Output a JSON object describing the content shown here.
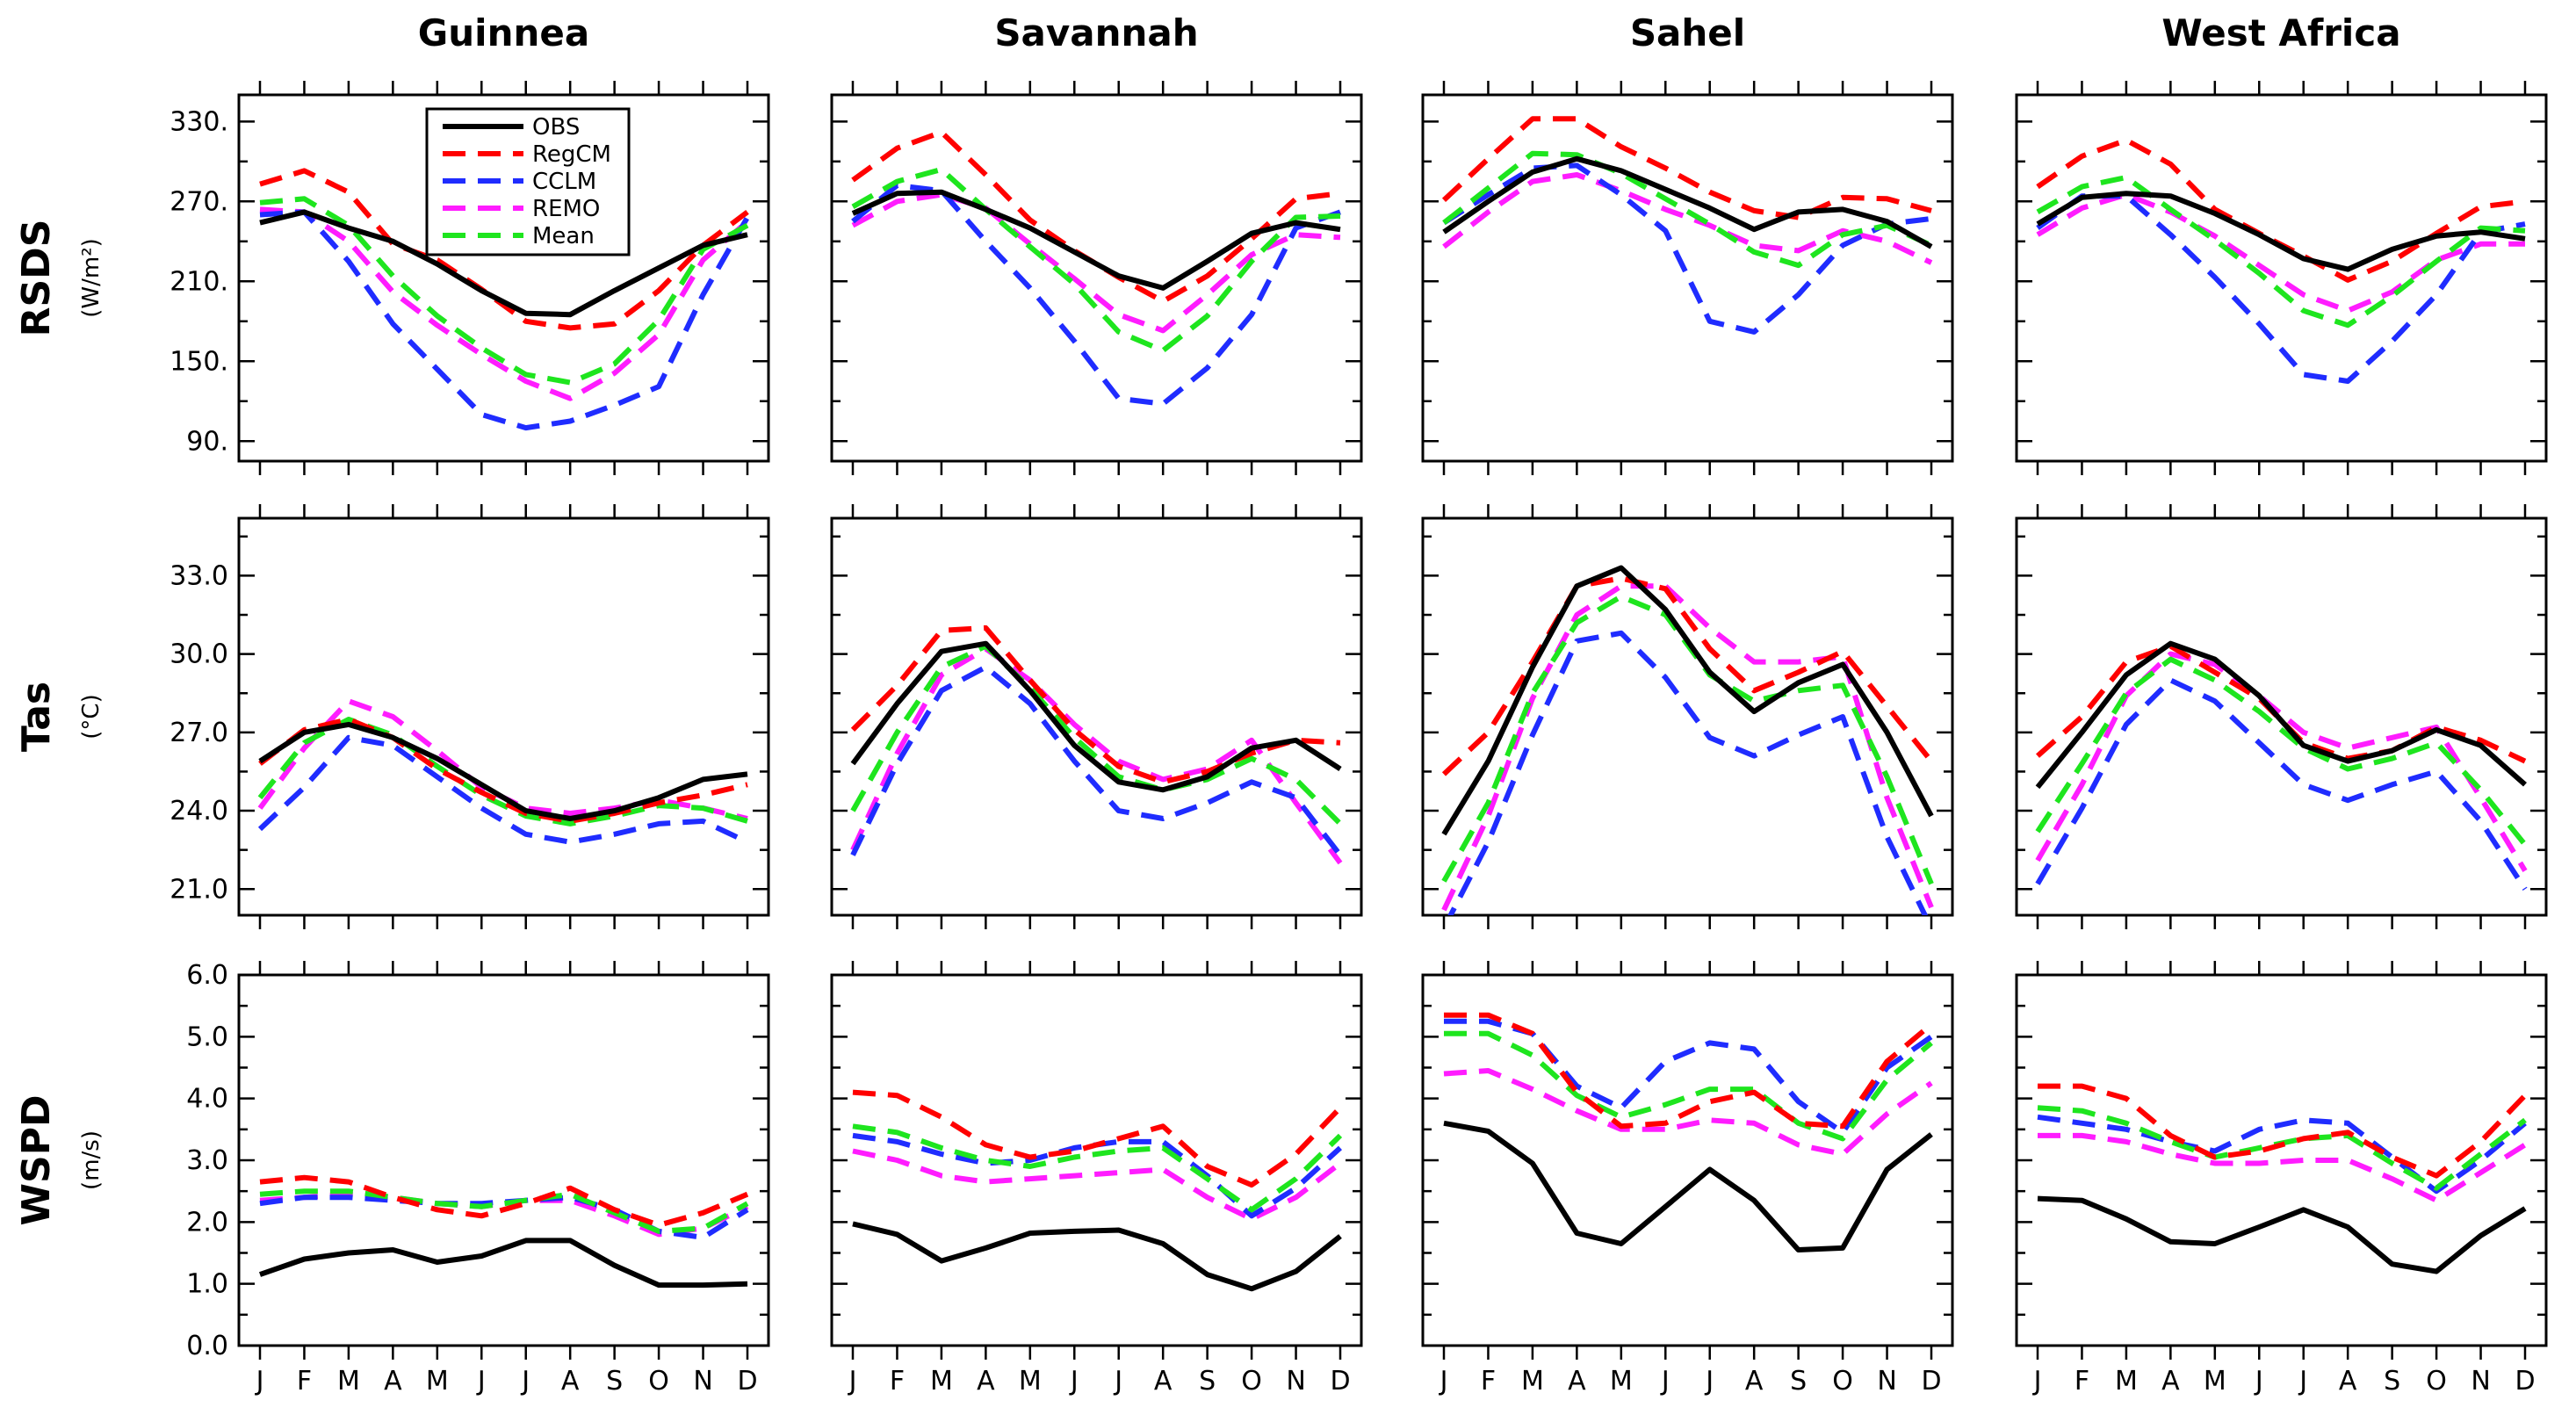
{
  "chart_data": {
    "type": "line",
    "columns": [
      "Guinnea",
      "Savannah",
      "Sahel",
      "West Africa"
    ],
    "months": [
      "J",
      "F",
      "M",
      "A",
      "M",
      "J",
      "J",
      "A",
      "S",
      "O",
      "N",
      "D"
    ],
    "legend": [
      {
        "name": "OBS",
        "color": "#000000",
        "dashed": false
      },
      {
        "name": "RegCM",
        "color": "#ff0000",
        "dashed": true
      },
      {
        "name": "CCLM",
        "color": "#1f2cff",
        "dashed": true
      },
      {
        "name": "REMO",
        "color": "#ff1cff",
        "dashed": true
      },
      {
        "name": "Mean",
        "color": "#1ee51e",
        "dashed": true
      }
    ],
    "rows": [
      {
        "label": "RSDS",
        "unit": "(W/m²)",
        "ylim": [
          75,
          350
        ],
        "ticks": [
          90,
          150,
          210,
          270,
          330
        ],
        "tick_labels": [
          "90.",
          "150.",
          "210.",
          "270.",
          "330."
        ],
        "panels": [
          {
            "OBS": [
              254,
              262,
              250,
              240,
              223,
              203,
              186,
              185,
              203,
              220,
              237,
              245
            ],
            "RegCM": [
              283,
              293,
              277,
              238,
              226,
              204,
              180,
              175,
              178,
              203,
              237,
              262
            ],
            "CCLM": [
              260,
              262,
              225,
              178,
              144,
              110,
              100,
              105,
              117,
              131,
              200,
              258
            ],
            "REMO": [
              264,
              262,
              240,
              202,
              177,
              155,
              135,
              122,
              141,
              170,
              226,
              255
            ],
            "Mean": [
              269,
              272,
              252,
              214,
              184,
              160,
              140,
              134,
              148,
              181,
              234,
              252
            ]
          },
          {
            "OBS": [
              261,
              276,
              277,
              264,
              250,
              232,
              214,
              205,
              225,
              246,
              254,
              249
            ],
            "RegCM": [
              286,
              310,
              322,
              290,
              256,
              233,
              213,
              195,
              214,
              242,
              272,
              276
            ],
            "CCLM": [
              255,
              282,
              278,
              240,
              205,
              165,
              122,
              118,
              145,
              185,
              250,
              262
            ],
            "REMO": [
              252,
              270,
              275,
              265,
              238,
              212,
              185,
              173,
              200,
              230,
              245,
              243
            ],
            "Mean": [
              266,
              285,
              294,
              264,
              236,
              208,
              172,
              158,
              184,
              225,
              258,
              259
            ]
          },
          {
            "OBS": [
              247,
              270,
              292,
              302,
              293,
              279,
              265,
              249,
              262,
              264,
              255,
              236
            ],
            "RegCM": [
              271,
              302,
              332,
              332,
              311,
              295,
              277,
              263,
              258,
              273,
              272,
              263
            ],
            "CCLM": [
              254,
              275,
              295,
              297,
              275,
              248,
              180,
              172,
              200,
              237,
              253,
              257
            ],
            "REMO": [
              236,
              262,
              285,
              290,
              278,
              264,
              252,
              237,
              233,
              248,
              240,
              224
            ],
            "Mean": [
              254,
              280,
              306,
              305,
              291,
              272,
              253,
              232,
              222,
              245,
              252,
              237
            ]
          },
          {
            "OBS": [
              253,
              273,
              276,
              274,
              261,
              245,
              227,
              219,
              234,
              244,
              247,
              242
            ],
            "RegCM": [
              281,
              304,
              316,
              298,
              264,
              246,
              229,
              211,
              225,
              246,
              266,
              270
            ],
            "CCLM": [
              250,
              274,
              274,
              245,
              213,
              178,
              140,
              135,
              165,
              200,
              247,
              253
            ],
            "REMO": [
              245,
              265,
              275,
              262,
              244,
              222,
              200,
              188,
              202,
              226,
              238,
              238
            ],
            "Mean": [
              262,
              281,
              288,
              264,
              241,
              216,
              188,
              177,
              199,
              225,
              250,
              248
            ]
          }
        ]
      },
      {
        "label": "Tas",
        "unit": "(°C)",
        "ylim": [
          20,
          35.2
        ],
        "ticks": [
          21,
          24,
          27,
          30,
          33
        ],
        "tick_labels": [
          "21.0",
          "24.0",
          "27.0",
          "30.0",
          "33.0"
        ],
        "panels": [
          {
            "OBS": [
              25.9,
              27.0,
              27.3,
              26.8,
              26.0,
              25.0,
              24.0,
              23.7,
              24.0,
              24.5,
              25.2,
              25.4
            ],
            "RegCM": [
              25.8,
              27.1,
              27.5,
              26.8,
              25.6,
              24.7,
              23.9,
              23.6,
              23.9,
              24.3,
              24.6,
              25.0
            ],
            "CCLM": [
              23.3,
              24.9,
              26.8,
              26.5,
              25.3,
              24.1,
              23.1,
              22.8,
              23.1,
              23.5,
              23.6,
              22.8
            ],
            "REMO": [
              24.1,
              26.4,
              28.2,
              27.6,
              26.3,
              24.9,
              24.1,
              23.9,
              24.1,
              24.4,
              24.1,
              23.7
            ],
            "Mean": [
              24.5,
              26.6,
              27.5,
              26.9,
              25.7,
              24.6,
              23.8,
              23.5,
              23.8,
              24.2,
              24.1,
              23.6
            ]
          },
          {
            "OBS": [
              25.8,
              28.1,
              30.1,
              30.4,
              28.6,
              26.5,
              25.1,
              24.8,
              25.3,
              26.4,
              26.7,
              25.6
            ],
            "RegCM": [
              27.1,
              28.8,
              30.9,
              31.0,
              29.0,
              27.1,
              25.7,
              25.1,
              25.5,
              26.2,
              26.7,
              26.6
            ],
            "CCLM": [
              22.3,
              25.8,
              28.6,
              29.5,
              28.1,
              25.9,
              24.0,
              23.7,
              24.3,
              25.1,
              24.5,
              22.3
            ],
            "REMO": [
              22.5,
              26.2,
              29.2,
              30.2,
              29.0,
              27.3,
              25.9,
              25.2,
              25.6,
              26.7,
              24.3,
              22.0
            ],
            "Mean": [
              24.0,
              27.0,
              29.5,
              30.3,
              28.7,
              26.8,
              25.3,
              24.8,
              25.2,
              26.0,
              25.2,
              23.5
            ]
          },
          {
            "OBS": [
              23.1,
              25.9,
              29.5,
              32.6,
              33.3,
              31.7,
              29.3,
              27.8,
              28.9,
              29.6,
              27.0,
              23.8
            ],
            "RegCM": [
              25.4,
              27.0,
              29.7,
              32.6,
              32.9,
              32.5,
              30.2,
              28.6,
              29.3,
              30.1,
              28.0,
              25.9
            ],
            "CCLM": [
              19.5,
              22.8,
              26.9,
              30.5,
              30.8,
              29.1,
              26.8,
              26.1,
              26.9,
              27.6,
              23.0,
              19.5
            ],
            "REMO": [
              20.2,
              23.8,
              28.3,
              31.5,
              32.6,
              32.6,
              31.0,
              29.7,
              29.7,
              29.9,
              24.5,
              20.3
            ],
            "Mean": [
              21.3,
              24.3,
              28.5,
              31.2,
              32.2,
              31.5,
              29.2,
              28.2,
              28.6,
              28.8,
              25.3,
              21.2
            ]
          },
          {
            "OBS": [
              24.9,
              27.0,
              29.2,
              30.4,
              29.8,
              28.4,
              26.5,
              25.9,
              26.3,
              27.1,
              26.5,
              25.0
            ],
            "RegCM": [
              26.1,
              27.6,
              29.7,
              30.3,
              29.3,
              28.3,
              26.6,
              26.0,
              26.3,
              27.2,
              26.7,
              25.9
            ],
            "CCLM": [
              21.2,
              24.1,
              27.3,
              29.0,
              28.2,
              26.6,
              25.0,
              24.4,
              25.0,
              25.5,
              23.6,
              21.0
            ],
            "REMO": [
              22.1,
              25.0,
              28.4,
              30.0,
              29.6,
              28.4,
              27.0,
              26.4,
              26.8,
              27.2,
              24.5,
              21.7
            ],
            "Mean": [
              23.2,
              25.8,
              28.5,
              29.8,
              29.0,
              27.8,
              26.4,
              25.6,
              26.0,
              26.6,
              24.8,
              22.7
            ]
          }
        ]
      },
      {
        "label": "WSPD",
        "unit": "(m/s)",
        "ylim": [
          0,
          6
        ],
        "ticks": [
          0,
          1,
          2,
          3,
          4,
          5,
          6
        ],
        "tick_labels": [
          "0.0",
          "1.0",
          "2.0",
          "3.0",
          "4.0",
          "5.0",
          "6.0"
        ],
        "panels": [
          {
            "OBS": [
              1.15,
              1.4,
              1.5,
              1.55,
              1.35,
              1.45,
              1.7,
              1.7,
              1.3,
              0.98,
              0.98,
              1.0
            ],
            "RegCM": [
              2.65,
              2.72,
              2.65,
              2.4,
              2.2,
              2.1,
              2.3,
              2.55,
              2.2,
              1.95,
              2.15,
              2.45
            ],
            "CCLM": [
              2.3,
              2.4,
              2.4,
              2.35,
              2.3,
              2.3,
              2.35,
              2.4,
              2.2,
              1.85,
              1.75,
              2.2
            ],
            "REMO": [
              2.35,
              2.4,
              2.45,
              2.4,
              2.3,
              2.25,
              2.35,
              2.35,
              2.1,
              1.8,
              1.9,
              2.25
            ],
            "Mean": [
              2.45,
              2.5,
              2.5,
              2.4,
              2.3,
              2.25,
              2.35,
              2.45,
              2.15,
              1.85,
              1.9,
              2.3
            ]
          },
          {
            "OBS": [
              1.97,
              1.8,
              1.37,
              1.58,
              1.82,
              1.85,
              1.87,
              1.65,
              1.15,
              0.92,
              1.2,
              1.77
            ],
            "RegCM": [
              4.1,
              4.05,
              3.7,
              3.25,
              3.05,
              3.15,
              3.35,
              3.55,
              2.9,
              2.6,
              3.1,
              3.85
            ],
            "CCLM": [
              3.4,
              3.3,
              3.1,
              2.95,
              3.0,
              3.2,
              3.3,
              3.3,
              2.75,
              2.1,
              2.55,
              3.2
            ],
            "REMO": [
              3.15,
              3.0,
              2.75,
              2.65,
              2.7,
              2.75,
              2.8,
              2.85,
              2.4,
              2.05,
              2.4,
              2.95
            ],
            "Mean": [
              3.55,
              3.45,
              3.2,
              3.0,
              2.9,
              3.05,
              3.15,
              3.2,
              2.7,
              2.2,
              2.7,
              3.4
            ]
          },
          {
            "OBS": [
              3.6,
              3.47,
              2.95,
              1.82,
              1.65,
              2.25,
              2.85,
              2.35,
              1.55,
              1.58,
              2.85,
              3.42
            ],
            "RegCM": [
              5.35,
              5.35,
              5.05,
              4.1,
              3.55,
              3.6,
              3.95,
              4.1,
              3.6,
              3.55,
              4.6,
              5.2
            ],
            "CCLM": [
              5.25,
              5.25,
              5.05,
              4.2,
              3.85,
              4.6,
              4.9,
              4.8,
              3.95,
              3.45,
              4.5,
              5.0
            ],
            "REMO": [
              4.4,
              4.45,
              4.15,
              3.8,
              3.5,
              3.5,
              3.65,
              3.6,
              3.25,
              3.1,
              3.75,
              4.25
            ],
            "Mean": [
              5.05,
              5.05,
              4.7,
              4.05,
              3.7,
              3.9,
              4.15,
              4.15,
              3.6,
              3.35,
              4.3,
              4.9
            ]
          },
          {
            "OBS": [
              2.38,
              2.35,
              2.05,
              1.68,
              1.65,
              1.92,
              2.2,
              1.92,
              1.32,
              1.2,
              1.78,
              2.22
            ],
            "RegCM": [
              4.2,
              4.2,
              4.0,
              3.4,
              3.05,
              3.15,
              3.35,
              3.45,
              3.05,
              2.75,
              3.3,
              4.05
            ],
            "CCLM": [
              3.7,
              3.6,
              3.5,
              3.3,
              3.15,
              3.5,
              3.65,
              3.6,
              3.05,
              2.5,
              3.0,
              3.6
            ],
            "REMO": [
              3.4,
              3.4,
              3.3,
              3.1,
              2.95,
              2.95,
              3.0,
              3.0,
              2.7,
              2.35,
              2.8,
              3.25
            ],
            "Mean": [
              3.85,
              3.8,
              3.6,
              3.3,
              3.05,
              3.2,
              3.35,
              3.4,
              2.95,
              2.55,
              3.1,
              3.65
            ]
          }
        ]
      }
    ]
  }
}
